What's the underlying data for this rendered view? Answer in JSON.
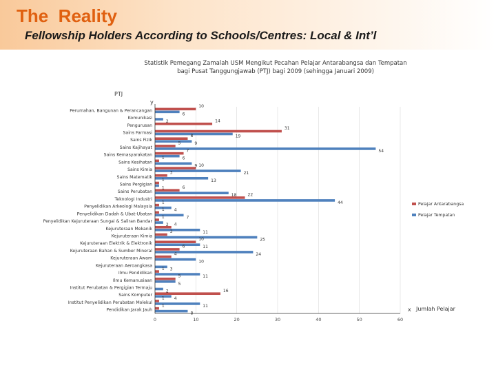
{
  "slide": {
    "title": "The  Reality",
    "subtitle": "Fellowship Holders According to Schools/Centres: Local & Int’l"
  },
  "chart_data": {
    "type": "bar",
    "orientation": "horizontal",
    "title_lines": [
      "Statistik Pemegang Zamalah USM Mengikut Pecahan Pelajar Antarabangsa dan Tempatan",
      "bagi Pusat Tanggungjawab (PTJ) bagi 2009 (sehingga Januari 2009)"
    ],
    "ylabel_top": "PTJ",
    "y_axis_letter": "y",
    "x_axis_letter": "x",
    "xlabel": "Jumlah Pelajar",
    "xlim": [
      0,
      60
    ],
    "xticks": [
      0,
      10,
      20,
      30,
      40,
      50,
      60
    ],
    "grid": true,
    "legend_position": "right",
    "categories": [
      "Perumahan, Bangunan & Perancangan",
      "Komunikasi",
      "Pengurusan",
      "Sains Farmasi",
      "Sains Fizik",
      "Sains Kajihayat",
      "Sains Kemasyarakatan",
      "Sains Kesihatan",
      "Sains Kimia",
      "Sains Matematik",
      "Sains Pergigian",
      "Sains Perubatan",
      "Teknologi Industri",
      "Penyelidikan Arkeologi Malaysia",
      "Penyelidikan Dadah & Ubat-Ubatan",
      "Penyelidikan Kejuruteraan Sungai & Saliran Bandar",
      "Kejuruteraan Mekanik",
      "Kejuruteraan Kimia",
      "Kejuruteraan Elektrik & Elektronik",
      "Kejuruteraan Bahan & Sumber Mineral",
      "Kejuruteraan Awam",
      "Kejuruteraan Aeroangkasa",
      "Ilmu Pendidikan",
      "Ilmu Kemanusiaan",
      "Institut Perubatan & Pergigian Termaju",
      "Sains Komputer",
      "Institut Penyelidikan Perubatan Molekul",
      "Pendidikan Jarak Jauh"
    ],
    "series": [
      {
        "name": "Pelajar Antarabangsa",
        "color": "#c0504d",
        "values": [
          10,
          null,
          14,
          31,
          8,
          5,
          7,
          1,
          10,
          3,
          1,
          6,
          22,
          1,
          1,
          1,
          4,
          3,
          10,
          6,
          4,
          null,
          1,
          5,
          null,
          16,
          1,
          1
        ]
      },
      {
        "name": "Pelajar Tempatan",
        "color": "#4f81bd",
        "values": [
          6,
          2,
          null,
          19,
          9,
          54,
          6,
          9,
          21,
          13,
          1,
          18,
          44,
          4,
          7,
          2,
          11,
          25,
          11,
          24,
          10,
          3,
          11,
          5,
          2,
          4,
          11,
          8
        ]
      }
    ]
  }
}
